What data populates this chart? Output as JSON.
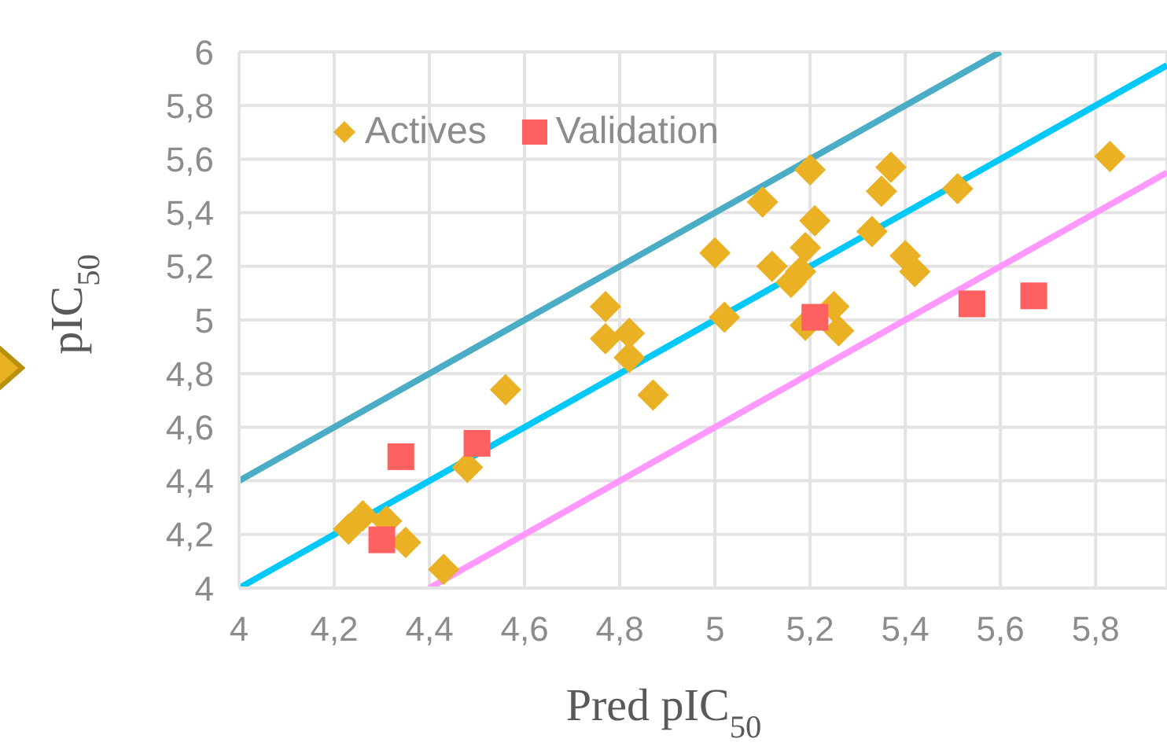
{
  "chart_data": {
    "type": "scatter",
    "xlabel": "Pred pIC$_{50}$",
    "ylabel": "pIC$_{50}$",
    "xlim": [
      4,
      5.95
    ],
    "ylim": [
      4,
      6
    ],
    "xticks": [
      4,
      {
        "value": 4.2,
        "label": "4,2"
      },
      {
        "value": 4.4,
        "label": "4,4"
      },
      {
        "value": 4.6,
        "label": "4,6"
      },
      {
        "value": 4.8,
        "label": "4,8"
      },
      5,
      {
        "value": 5.2,
        "label": "5,2"
      },
      {
        "value": 5.4,
        "label": "5,4"
      },
      {
        "value": 5.6,
        "label": "5,6"
      },
      {
        "value": 5.8,
        "label": "5,8"
      }
    ],
    "yticks": [
      4,
      {
        "value": 4.2,
        "label": "4,2"
      },
      {
        "value": 4.4,
        "label": "4,4"
      },
      {
        "value": 4.6,
        "label": "4,6"
      },
      {
        "value": 4.8,
        "label": "4,8"
      },
      5,
      {
        "value": 5.2,
        "label": "5,2"
      },
      {
        "value": 5.4,
        "label": "5,4"
      },
      {
        "value": 5.6,
        "label": "5,6"
      },
      {
        "value": 5.8,
        "label": "5,8"
      },
      6
    ],
    "grid": true,
    "legend": "top left",
    "series": [
      {
        "name": "Actives",
        "marker": "diamond",
        "color": "#e9b123",
        "x": [
          4.23,
          4.26,
          4.31,
          4.35,
          4.43,
          4.48,
          4.56,
          4.77,
          4.77,
          4.82,
          4.82,
          4.87,
          5.0,
          5.02,
          5.1,
          5.12,
          5.16,
          5.18,
          5.19,
          5.2,
          5.21,
          5.19,
          5.25,
          5.26,
          5.33,
          5.35,
          5.37,
          5.4,
          5.42,
          5.51,
          5.83
        ],
        "values": [
          4.22,
          4.27,
          4.25,
          4.17,
          4.07,
          4.45,
          4.74,
          5.05,
          4.93,
          4.95,
          4.86,
          4.72,
          5.25,
          5.01,
          5.44,
          5.2,
          5.14,
          5.18,
          5.27,
          5.56,
          5.37,
          4.98,
          5.05,
          4.96,
          5.33,
          5.48,
          5.57,
          5.24,
          5.18,
          5.49,
          5.61
        ]
      },
      {
        "name": "Validation",
        "marker": "square",
        "color": "#ff6161",
        "x": [
          4.34,
          4.5,
          4.3,
          5.21,
          5.54,
          5.67
        ],
        "values": [
          4.49,
          4.54,
          4.18,
          5.01,
          5.06,
          5.09
        ]
      },
      {
        "type": "line",
        "marker": "none",
        "color": "#4bacc6",
        "x": [
          4,
          5.6
        ],
        "values": [
          4.4,
          6
        ]
      },
      {
        "type": "line",
        "marker": "none",
        "color": "#00c8f8",
        "x": [
          4,
          5.95
        ],
        "values": [
          4,
          5.95
        ]
      },
      {
        "type": "line",
        "marker": "none",
        "color": "#ff99ff",
        "x": [
          4.4,
          5.95
        ],
        "values": [
          4,
          5.55
        ]
      }
    ]
  }
}
